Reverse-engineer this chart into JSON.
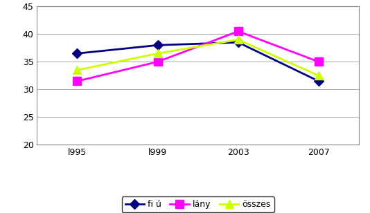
{
  "x_labels": [
    "l995",
    "l999",
    "2003",
    "2007"
  ],
  "x_positions": [
    0,
    1,
    2,
    3
  ],
  "series": {
    "fiú": {
      "values": [
        36.5,
        38.0,
        38.5,
        31.5
      ],
      "color": "#000080",
      "marker": "D",
      "markersize": 7,
      "linewidth": 2.0
    },
    "lány": {
      "values": [
        31.5,
        35.0,
        40.5,
        35.0
      ],
      "color": "#FF00FF",
      "marker": "s",
      "markersize": 8,
      "linewidth": 2.0
    },
    "összes": {
      "values": [
        33.5,
        36.5,
        39.0,
        32.5
      ],
      "color": "#CCFF00",
      "marker": "^",
      "markersize": 8,
      "linewidth": 2.0
    }
  },
  "ylim": [
    20,
    45
  ],
  "yticks": [
    20,
    25,
    30,
    35,
    40,
    45
  ],
  "bg_color": "#ffffff",
  "grid_color": "#aaaaaa",
  "legend_labels": [
    "fi ú",
    "lány",
    "összes"
  ]
}
